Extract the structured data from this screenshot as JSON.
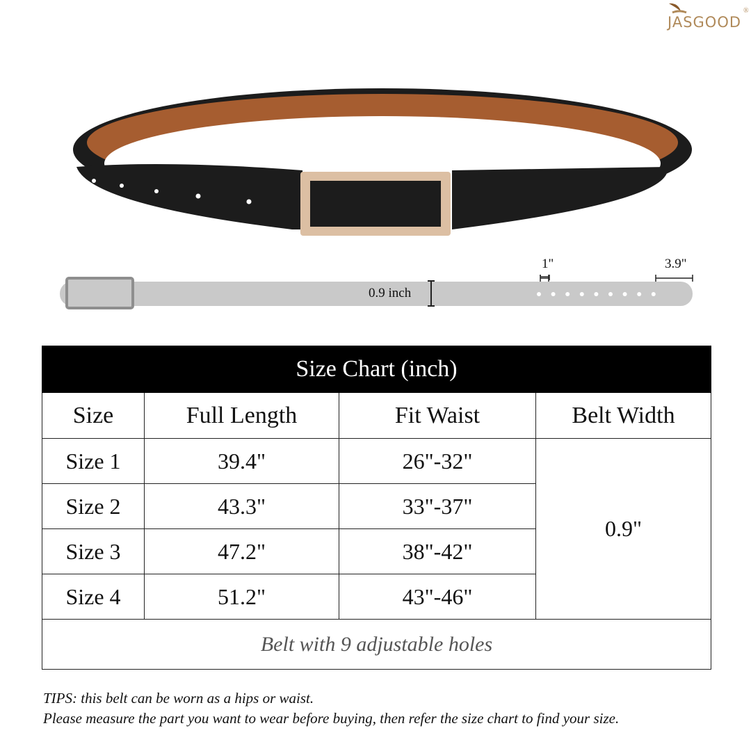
{
  "brand": {
    "logo_text": "JASGOOD",
    "registered": "®"
  },
  "diagram": {
    "width_label": "0.9 inch",
    "hole_spacing_label": "1\"",
    "hole_range_label": "3.9\"",
    "holes": 9
  },
  "table": {
    "title": "Size Chart (inch)",
    "headers": [
      "Size",
      "Full Length",
      "Fit Waist",
      "Belt Width"
    ],
    "rows": [
      {
        "size": "Size 1",
        "length": "39.4\"",
        "waist": "26\"-32\""
      },
      {
        "size": "Size 2",
        "length": "43.3\"",
        "waist": "33\"-37\""
      },
      {
        "size": "Size 3",
        "length": "47.2\"",
        "waist": "38\"-42\""
      },
      {
        "size": "Size 4",
        "length": "51.2\"",
        "waist": "43\"-46\""
      }
    ],
    "belt_width": "0.9\"",
    "footer": "Belt with 9 adjustable holes"
  },
  "tips": {
    "line1": "TIPS: this belt can be worn as a hips or waist.",
    "line2": "Please measure the part you want to wear before buying, then refer the size chart to find your size."
  },
  "colors": {
    "belt": "#1a1a1a",
    "lining": "#a85f32",
    "buckle": "#d9b99a",
    "diagram": "#c9c9c9",
    "header": "#000000"
  }
}
